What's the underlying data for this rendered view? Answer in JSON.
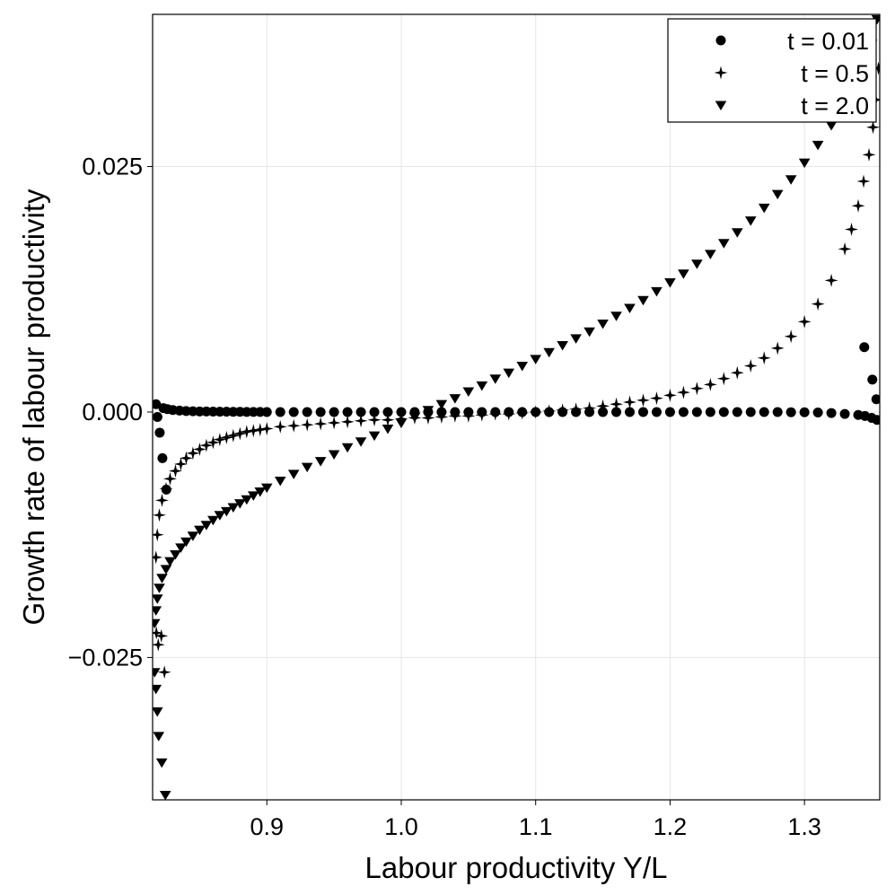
{
  "chart_data": {
    "type": "scatter",
    "xlabel": "Labour productivity Y/L",
    "ylabel": "Growth rate of labour productivity",
    "xlim": [
      0.815,
      1.356
    ],
    "ylim": [
      -0.0395,
      0.0405
    ],
    "xticks": [
      {
        "value": 0.9,
        "label": "0.9"
      },
      {
        "value": 1.0,
        "label": "1.0"
      },
      {
        "value": 1.1,
        "label": "1.1"
      },
      {
        "value": 1.2,
        "label": "1.2"
      },
      {
        "value": 1.3,
        "label": "1.3"
      }
    ],
    "yticks": [
      {
        "value": -0.025,
        "label": "−0.025"
      },
      {
        "value": 0.0,
        "label": "0.000"
      },
      {
        "value": 0.025,
        "label": "0.025"
      }
    ],
    "grid": true,
    "legend_position": "top-right",
    "series": [
      {
        "name": "t = 0.01",
        "marker": "circle",
        "color": "#000000",
        "points": [
          [
            0.8175,
            0.0008
          ],
          [
            0.8186,
            -0.0005
          ],
          [
            0.8203,
            -0.0021
          ],
          [
            0.8223,
            -0.0047
          ],
          [
            0.8252,
            -0.0079
          ],
          [
            0.823,
            0.0004
          ],
          [
            0.826,
            0.0003
          ],
          [
            0.83,
            0.0002
          ],
          [
            0.835,
            0.00015
          ],
          [
            0.84,
            0.0001
          ],
          [
            0.845,
            8e-05
          ],
          [
            0.85,
            6e-05
          ],
          [
            0.855,
            5e-05
          ],
          [
            0.86,
            4e-05
          ],
          [
            0.865,
            3e-05
          ],
          [
            0.87,
            3e-05
          ],
          [
            0.875,
            2e-05
          ],
          [
            0.88,
            2e-05
          ],
          [
            0.885,
            1e-05
          ],
          [
            0.89,
            1e-05
          ],
          [
            0.895,
            1e-05
          ],
          [
            0.9,
            0.0
          ],
          [
            0.91,
            0.0
          ],
          [
            0.92,
            0.0
          ],
          [
            0.93,
            0.0
          ],
          [
            0.94,
            0.0
          ],
          [
            0.95,
            0.0
          ],
          [
            0.96,
            0.0
          ],
          [
            0.97,
            0.0
          ],
          [
            0.98,
            0.0
          ],
          [
            0.99,
            0.0
          ],
          [
            1.0,
            0.0
          ],
          [
            1.01,
            0.0
          ],
          [
            1.02,
            0.0
          ],
          [
            1.03,
            0.0
          ],
          [
            1.04,
            0.0
          ],
          [
            1.05,
            0.0
          ],
          [
            1.06,
            0.0
          ],
          [
            1.07,
            0.0
          ],
          [
            1.08,
            0.0
          ],
          [
            1.09,
            0.0
          ],
          [
            1.1,
            0.0
          ],
          [
            1.11,
            0.0
          ],
          [
            1.12,
            0.0
          ],
          [
            1.13,
            0.0
          ],
          [
            1.14,
            0.0
          ],
          [
            1.15,
            0.0
          ],
          [
            1.16,
            0.0
          ],
          [
            1.17,
            0.0
          ],
          [
            1.18,
            0.0
          ],
          [
            1.19,
            0.0
          ],
          [
            1.2,
            0.0
          ],
          [
            1.21,
            0.0
          ],
          [
            1.22,
            0.0
          ],
          [
            1.23,
            0.0
          ],
          [
            1.24,
            0.0
          ],
          [
            1.25,
            0.0
          ],
          [
            1.26,
            0.0
          ],
          [
            1.27,
            0.0
          ],
          [
            1.28,
            0.0
          ],
          [
            1.29,
            -2e-05
          ],
          [
            1.3,
            -3e-05
          ],
          [
            1.31,
            -5e-05
          ],
          [
            1.32,
            -0.0001
          ],
          [
            1.33,
            -0.0002
          ],
          [
            1.34,
            -0.0003
          ],
          [
            1.345,
            -0.0004
          ],
          [
            1.35,
            -0.0006
          ],
          [
            1.354,
            -0.0008
          ],
          [
            1.3445,
            0.0066
          ],
          [
            1.3505,
            0.0033
          ],
          [
            1.3535,
            0.0013
          ]
        ]
      },
      {
        "name": "t = 0.5",
        "marker": "star",
        "color": "#000000",
        "points": [
          [
            0.8178,
            -0.0225
          ],
          [
            0.8192,
            -0.0237
          ],
          [
            0.8215,
            -0.0228
          ],
          [
            0.8238,
            -0.0265
          ],
          [
            0.8175,
            -0.0148
          ],
          [
            0.8185,
            -0.0125
          ],
          [
            0.82,
            -0.0105
          ],
          [
            0.822,
            -0.009
          ],
          [
            0.825,
            -0.0078
          ],
          [
            0.828,
            -0.0068
          ],
          [
            0.832,
            -0.006
          ],
          [
            0.836,
            -0.0053
          ],
          [
            0.84,
            -0.0047
          ],
          [
            0.845,
            -0.0042
          ],
          [
            0.85,
            -0.0038
          ],
          [
            0.855,
            -0.0034
          ],
          [
            0.86,
            -0.0031
          ],
          [
            0.865,
            -0.0028
          ],
          [
            0.87,
            -0.0026
          ],
          [
            0.875,
            -0.0024
          ],
          [
            0.88,
            -0.0022
          ],
          [
            0.885,
            -0.002
          ],
          [
            0.89,
            -0.0019
          ],
          [
            0.895,
            -0.0018
          ],
          [
            0.9,
            -0.0017
          ],
          [
            0.91,
            -0.0015
          ],
          [
            0.92,
            -0.0014
          ],
          [
            0.93,
            -0.0013
          ],
          [
            0.94,
            -0.0012
          ],
          [
            0.95,
            -0.0011
          ],
          [
            0.96,
            -0.001
          ],
          [
            0.97,
            -0.0009
          ],
          [
            0.98,
            -0.0008
          ],
          [
            0.99,
            -0.0008
          ],
          [
            1.0,
            -0.0007
          ],
          [
            1.01,
            -0.0006
          ],
          [
            1.02,
            -0.0006
          ],
          [
            1.03,
            -0.0005
          ],
          [
            1.04,
            -0.0004
          ],
          [
            1.05,
            -0.0004
          ],
          [
            1.06,
            -0.0003
          ],
          [
            1.07,
            -0.0002
          ],
          [
            1.08,
            -0.0002
          ],
          [
            1.09,
            -0.0001
          ],
          [
            1.1,
            0.0
          ],
          [
            1.11,
            0.0001
          ],
          [
            1.12,
            0.0002
          ],
          [
            1.13,
            0.0003
          ],
          [
            1.14,
            0.0004
          ],
          [
            1.15,
            0.0006
          ],
          [
            1.16,
            0.0008
          ],
          [
            1.17,
            0.001
          ],
          [
            1.18,
            0.0012
          ],
          [
            1.19,
            0.0014
          ],
          [
            1.2,
            0.0017
          ],
          [
            1.21,
            0.002
          ],
          [
            1.22,
            0.0024
          ],
          [
            1.23,
            0.0028
          ],
          [
            1.24,
            0.0034
          ],
          [
            1.25,
            0.004
          ],
          [
            1.26,
            0.0047
          ],
          [
            1.27,
            0.0055
          ],
          [
            1.28,
            0.0065
          ],
          [
            1.29,
            0.0077
          ],
          [
            1.3,
            0.0092
          ],
          [
            1.31,
            0.011
          ],
          [
            1.32,
            0.0134
          ],
          [
            1.33,
            0.0166
          ],
          [
            1.335,
            0.0186
          ],
          [
            1.34,
            0.021
          ],
          [
            1.344,
            0.0235
          ],
          [
            1.348,
            0.0262
          ],
          [
            1.351,
            0.029
          ],
          [
            1.353,
            0.0318
          ],
          [
            1.355,
            0.035
          ]
        ]
      },
      {
        "name": "t = 2.0",
        "marker": "triangle-down",
        "color": "#000000",
        "points": [
          [
            0.8165,
            -0.0265
          ],
          [
            0.8175,
            -0.0282
          ],
          [
            0.8185,
            -0.0305
          ],
          [
            0.8195,
            -0.033
          ],
          [
            0.8218,
            -0.0357
          ],
          [
            0.8245,
            -0.039
          ],
          [
            0.8165,
            -0.0215
          ],
          [
            0.8175,
            -0.0202
          ],
          [
            0.8185,
            -0.019
          ],
          [
            0.82,
            -0.0179
          ],
          [
            0.822,
            -0.0169
          ],
          [
            0.825,
            -0.016
          ],
          [
            0.828,
            -0.0152
          ],
          [
            0.832,
            -0.0145
          ],
          [
            0.836,
            -0.0138
          ],
          [
            0.84,
            -0.0132
          ],
          [
            0.845,
            -0.0126
          ],
          [
            0.85,
            -0.012
          ],
          [
            0.855,
            -0.0115
          ],
          [
            0.86,
            -0.011
          ],
          [
            0.865,
            -0.0105
          ],
          [
            0.87,
            -0.0101
          ],
          [
            0.875,
            -0.0097
          ],
          [
            0.88,
            -0.0093
          ],
          [
            0.885,
            -0.0089
          ],
          [
            0.89,
            -0.0085
          ],
          [
            0.895,
            -0.0081
          ],
          [
            0.9,
            -0.0077
          ],
          [
            0.91,
            -0.007
          ],
          [
            0.92,
            -0.0063
          ],
          [
            0.93,
            -0.0056
          ],
          [
            0.94,
            -0.005
          ],
          [
            0.95,
            -0.0043
          ],
          [
            0.96,
            -0.0036
          ],
          [
            0.97,
            -0.003
          ],
          [
            0.98,
            -0.0024
          ],
          [
            0.99,
            -0.0017
          ],
          [
            1.0,
            -0.0011
          ],
          [
            1.01,
            -0.0005
          ],
          [
            1.02,
            0.0002
          ],
          [
            1.03,
            0.0008
          ],
          [
            1.04,
            0.0014
          ],
          [
            1.05,
            0.0021
          ],
          [
            1.06,
            0.0027
          ],
          [
            1.07,
            0.0034
          ],
          [
            1.08,
            0.004
          ],
          [
            1.09,
            0.0047
          ],
          [
            1.1,
            0.0054
          ],
          [
            1.11,
            0.0061
          ],
          [
            1.12,
            0.0068
          ],
          [
            1.13,
            0.0075
          ],
          [
            1.14,
            0.0082
          ],
          [
            1.15,
            0.009
          ],
          [
            1.16,
            0.0098
          ],
          [
            1.17,
            0.0106
          ],
          [
            1.18,
            0.0114
          ],
          [
            1.19,
            0.0123
          ],
          [
            1.2,
            0.0132
          ],
          [
            1.21,
            0.0141
          ],
          [
            1.22,
            0.0151
          ],
          [
            1.23,
            0.0161
          ],
          [
            1.24,
            0.0172
          ],
          [
            1.25,
            0.0183
          ],
          [
            1.26,
            0.0195
          ],
          [
            1.27,
            0.0208
          ],
          [
            1.28,
            0.0222
          ],
          [
            1.29,
            0.0237
          ],
          [
            1.3,
            0.0254
          ],
          [
            1.31,
            0.0272
          ],
          [
            1.32,
            0.0292
          ],
          [
            1.33,
            0.0315
          ],
          [
            1.34,
            0.034
          ],
          [
            1.346,
            0.0358
          ],
          [
            1.35,
            0.0375
          ],
          [
            1.354,
            0.04
          ]
        ]
      }
    ]
  }
}
